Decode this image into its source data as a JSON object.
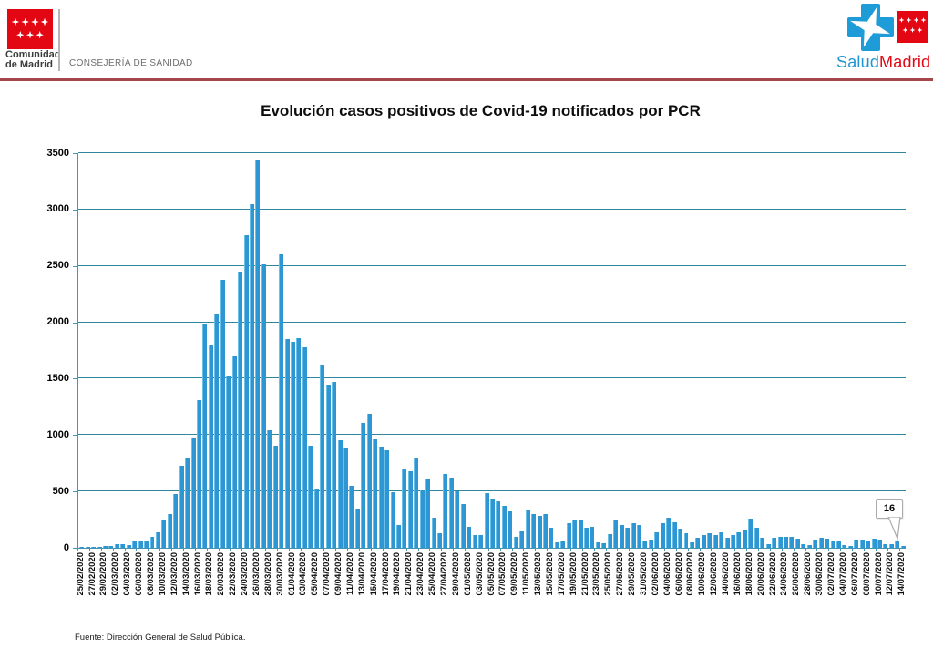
{
  "header": {
    "region_logo": {
      "title_line1": "Comunidad",
      "title_line2": "de Madrid",
      "department": "CONSEJERÍA DE SANIDAD"
    },
    "salud_logo": {
      "salud": "Salud",
      "madrid": "Madrid"
    }
  },
  "chart_data": {
    "type": "bar",
    "title": "Evolución casos positivos de Covid-19 notificados por PCR",
    "xlabel": "",
    "ylabel": "",
    "ylim": [
      0,
      3500
    ],
    "yticks": [
      0,
      500,
      1000,
      1500,
      2000,
      2500,
      3000,
      3500
    ],
    "grid": true,
    "legend_position": "none",
    "x_label_every": 2,
    "last_point_label": "16",
    "categories": [
      "25/02/2020",
      "26/02/2020",
      "27/02/2020",
      "28/02/2020",
      "29/02/2020",
      "01/03/2020",
      "02/03/2020",
      "03/03/2020",
      "04/03/2020",
      "05/03/2020",
      "06/03/2020",
      "07/03/2020",
      "08/03/2020",
      "09/03/2020",
      "10/03/2020",
      "11/03/2020",
      "12/03/2020",
      "13/03/2020",
      "14/03/2020",
      "15/03/2020",
      "16/03/2020",
      "17/03/2020",
      "18/03/2020",
      "19/03/2020",
      "20/03/2020",
      "21/03/2020",
      "22/03/2020",
      "23/03/2020",
      "24/03/2020",
      "25/03/2020",
      "26/03/2020",
      "27/03/2020",
      "28/03/2020",
      "29/03/2020",
      "30/03/2020",
      "31/03/2020",
      "01/04/2020",
      "02/04/2020",
      "03/04/2020",
      "04/04/2020",
      "05/04/2020",
      "06/04/2020",
      "07/04/2020",
      "08/04/2020",
      "09/04/2020",
      "10/04/2020",
      "11/04/2020",
      "12/04/2020",
      "13/04/2020",
      "14/04/2020",
      "15/04/2020",
      "16/04/2020",
      "17/04/2020",
      "18/04/2020",
      "19/04/2020",
      "20/04/2020",
      "21/04/2020",
      "22/04/2020",
      "23/04/2020",
      "24/04/2020",
      "25/04/2020",
      "26/04/2020",
      "27/04/2020",
      "28/04/2020",
      "29/04/2020",
      "30/04/2020",
      "01/05/2020",
      "02/05/2020",
      "03/05/2020",
      "04/05/2020",
      "05/05/2020",
      "06/05/2020",
      "07/05/2020",
      "08/05/2020",
      "09/05/2020",
      "10/05/2020",
      "11/05/2020",
      "12/05/2020",
      "13/05/2020",
      "14/05/2020",
      "15/05/2020",
      "16/05/2020",
      "17/05/2020",
      "18/05/2020",
      "19/05/2020",
      "20/05/2020",
      "21/05/2020",
      "22/05/2020",
      "23/05/2020",
      "24/05/2020",
      "25/05/2020",
      "26/05/2020",
      "27/05/2020",
      "28/05/2020",
      "29/05/2020",
      "30/05/2020",
      "31/05/2020",
      "01/06/2020",
      "02/06/2020",
      "03/06/2020",
      "04/06/2020",
      "05/06/2020",
      "06/06/2020",
      "07/06/2020",
      "08/06/2020",
      "09/06/2020",
      "10/06/2020",
      "11/06/2020",
      "12/06/2020",
      "13/06/2020",
      "14/06/2020",
      "15/06/2020",
      "16/06/2020",
      "17/06/2020",
      "18/06/2020",
      "19/06/2020",
      "20/06/2020",
      "21/06/2020",
      "22/06/2020",
      "23/06/2020",
      "24/06/2020",
      "25/06/2020",
      "26/06/2020",
      "27/06/2020",
      "28/06/2020",
      "29/06/2020",
      "30/06/2020",
      "01/07/2020",
      "02/07/2020",
      "03/07/2020",
      "04/07/2020",
      "05/07/2020",
      "06/07/2020",
      "07/07/2020",
      "08/07/2020",
      "09/07/2020",
      "10/07/2020",
      "11/07/2020",
      "12/07/2020",
      "13/07/2020",
      "14/07/2020"
    ],
    "values": [
      10,
      8,
      12,
      10,
      15,
      14,
      30,
      35,
      28,
      55,
      65,
      55,
      100,
      140,
      240,
      300,
      480,
      730,
      800,
      975,
      1310,
      1980,
      1795,
      2080,
      2380,
      1530,
      1700,
      2450,
      2770,
      3050,
      3440,
      2510,
      1040,
      905,
      2600,
      1855,
      1830,
      1860,
      1780,
      905,
      525,
      1625,
      1445,
      1475,
      950,
      880,
      550,
      345,
      1105,
      1185,
      965,
      895,
      865,
      490,
      200,
      705,
      680,
      790,
      510,
      605,
      270,
      130,
      655,
      620,
      500,
      390,
      185,
      115,
      115,
      485,
      440,
      415,
      375,
      320,
      95,
      145,
      330,
      300,
      285,
      300,
      180,
      50,
      65,
      220,
      245,
      250,
      180,
      185,
      50,
      40,
      120,
      250,
      205,
      180,
      220,
      205,
      65,
      75,
      140,
      220,
      270,
      230,
      170,
      130,
      50,
      90,
      115,
      130,
      115,
      140,
      90,
      110,
      135,
      160,
      255,
      175,
      85,
      30,
      90,
      100,
      95,
      95,
      80,
      30,
      25,
      75,
      85,
      80,
      65,
      60,
      25,
      20,
      70,
      75,
      65,
      80,
      70,
      35,
      30,
      55,
      16
    ]
  },
  "footer": {
    "source": "Fuente: Dirección General de Salud Pública."
  },
  "colors": {
    "bar": "#2E97D3",
    "grid": "#31859C",
    "axis": "#4596B4",
    "flag_red": "#E30613",
    "salud_blue": "#1E9CD7",
    "rule_red": "#A4464B"
  }
}
